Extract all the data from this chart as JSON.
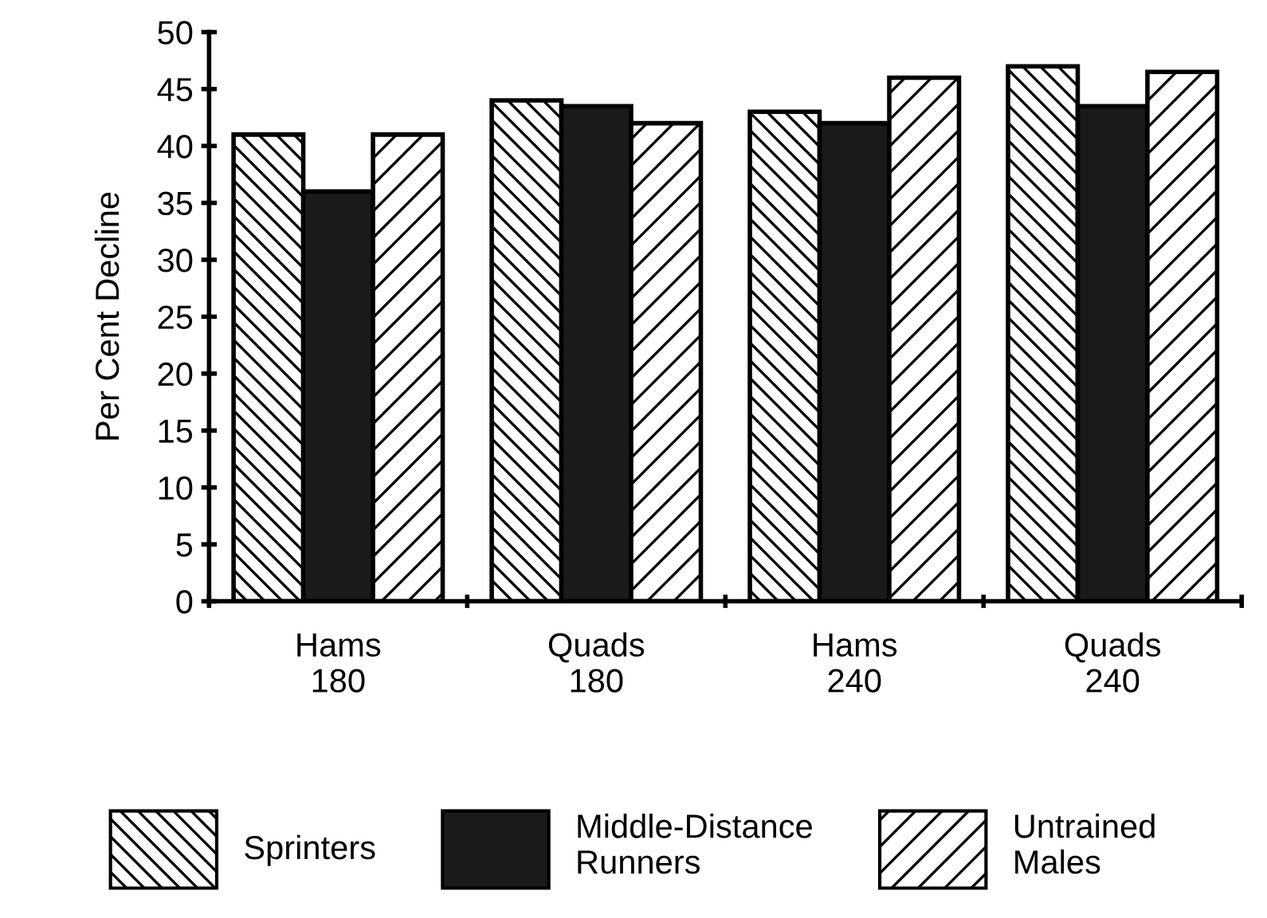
{
  "chart_data": {
    "type": "bar",
    "ylabel": "Per Cent Decline",
    "categories": [
      "Hams\n180",
      "Quads\n180",
      "Hams\n240",
      "Quads\n240"
    ],
    "series": [
      {
        "name": "Sprinters",
        "color": "#ffffff",
        "values": [
          41,
          44,
          43,
          47
        ]
      },
      {
        "name": "Middle-Distance\nRunners",
        "color": "#1a1a1a",
        "values": [
          36,
          43.5,
          42,
          43.5
        ]
      },
      {
        "name": "Untrained\nMales",
        "color": "#ffffff",
        "values": [
          41,
          42,
          46,
          46.5
        ]
      }
    ],
    "ylim": [
      0,
      50
    ],
    "yticks": [
      0,
      5,
      10,
      15,
      20,
      25,
      30,
      35,
      40,
      45,
      50
    ],
    "grid": false,
    "legend": "bottom"
  }
}
